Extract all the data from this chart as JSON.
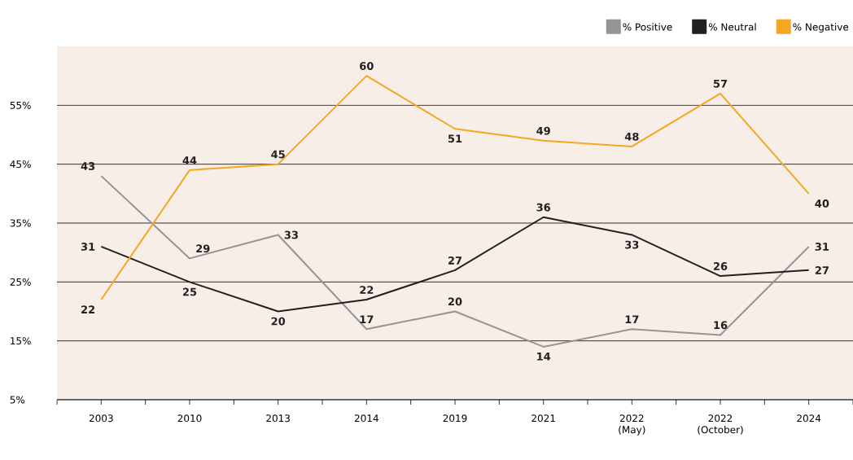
{
  "chart_data": {
    "type": "line",
    "categories": [
      "2003",
      "2010",
      "2013",
      "2014",
      "2019",
      "2021",
      "2022 (May)",
      "2022 (October)",
      "2024"
    ],
    "series": [
      {
        "name": "% Positive",
        "color": "#959595",
        "values": [
          43,
          29,
          33,
          17,
          20,
          14,
          17,
          16,
          31
        ]
      },
      {
        "name": "% Neutral",
        "color": "#231f20",
        "values": [
          31,
          25,
          20,
          22,
          27,
          36,
          33,
          26,
          27
        ]
      },
      {
        "name": "% Negative",
        "color": "#f5a623",
        "values": [
          22,
          44,
          45,
          60,
          51,
          49,
          48,
          57,
          40
        ]
      }
    ],
    "ylim": [
      5,
      65
    ],
    "yticks": [
      {
        "value": 5,
        "label": "5%"
      },
      {
        "value": 15,
        "label": "15%"
      },
      {
        "value": 25,
        "label": "25%"
      },
      {
        "value": 35,
        "label": "35%"
      },
      {
        "value": 45,
        "label": "45%"
      },
      {
        "value": 55,
        "label": "55%"
      }
    ],
    "grid": "y",
    "legend": "top right",
    "data_labels": true,
    "marker": "none",
    "line_style": "solid"
  }
}
